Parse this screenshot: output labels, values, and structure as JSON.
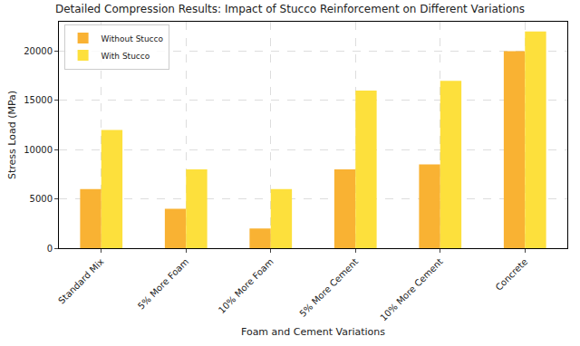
{
  "chart_data": {
    "type": "bar",
    "title": "Detailed Compression Results: Impact of Stucco Reinforcement on Different Variations",
    "x_label": "Foam and Cement Variations",
    "y_label": "Stress Load (MPa)",
    "categories": [
      "Standard Mix",
      "5% More Foam",
      "10% More Foam",
      "5% More Cement",
      "10% More Cement",
      "Concrete"
    ],
    "series": [
      {
        "name": "Without Stucco",
        "color": "#f9b233",
        "values": [
          6000,
          4000,
          2000,
          8000,
          8500,
          20000
        ]
      },
      {
        "name": "With Stucco",
        "color": "#fde03c",
        "values": [
          12000,
          8000,
          6000,
          16000,
          17000,
          22000
        ]
      }
    ],
    "ylim": [
      0,
      23000
    ],
    "yticks": [
      0,
      5000,
      10000,
      15000,
      20000
    ],
    "grid": true,
    "legend": "upper left"
  }
}
